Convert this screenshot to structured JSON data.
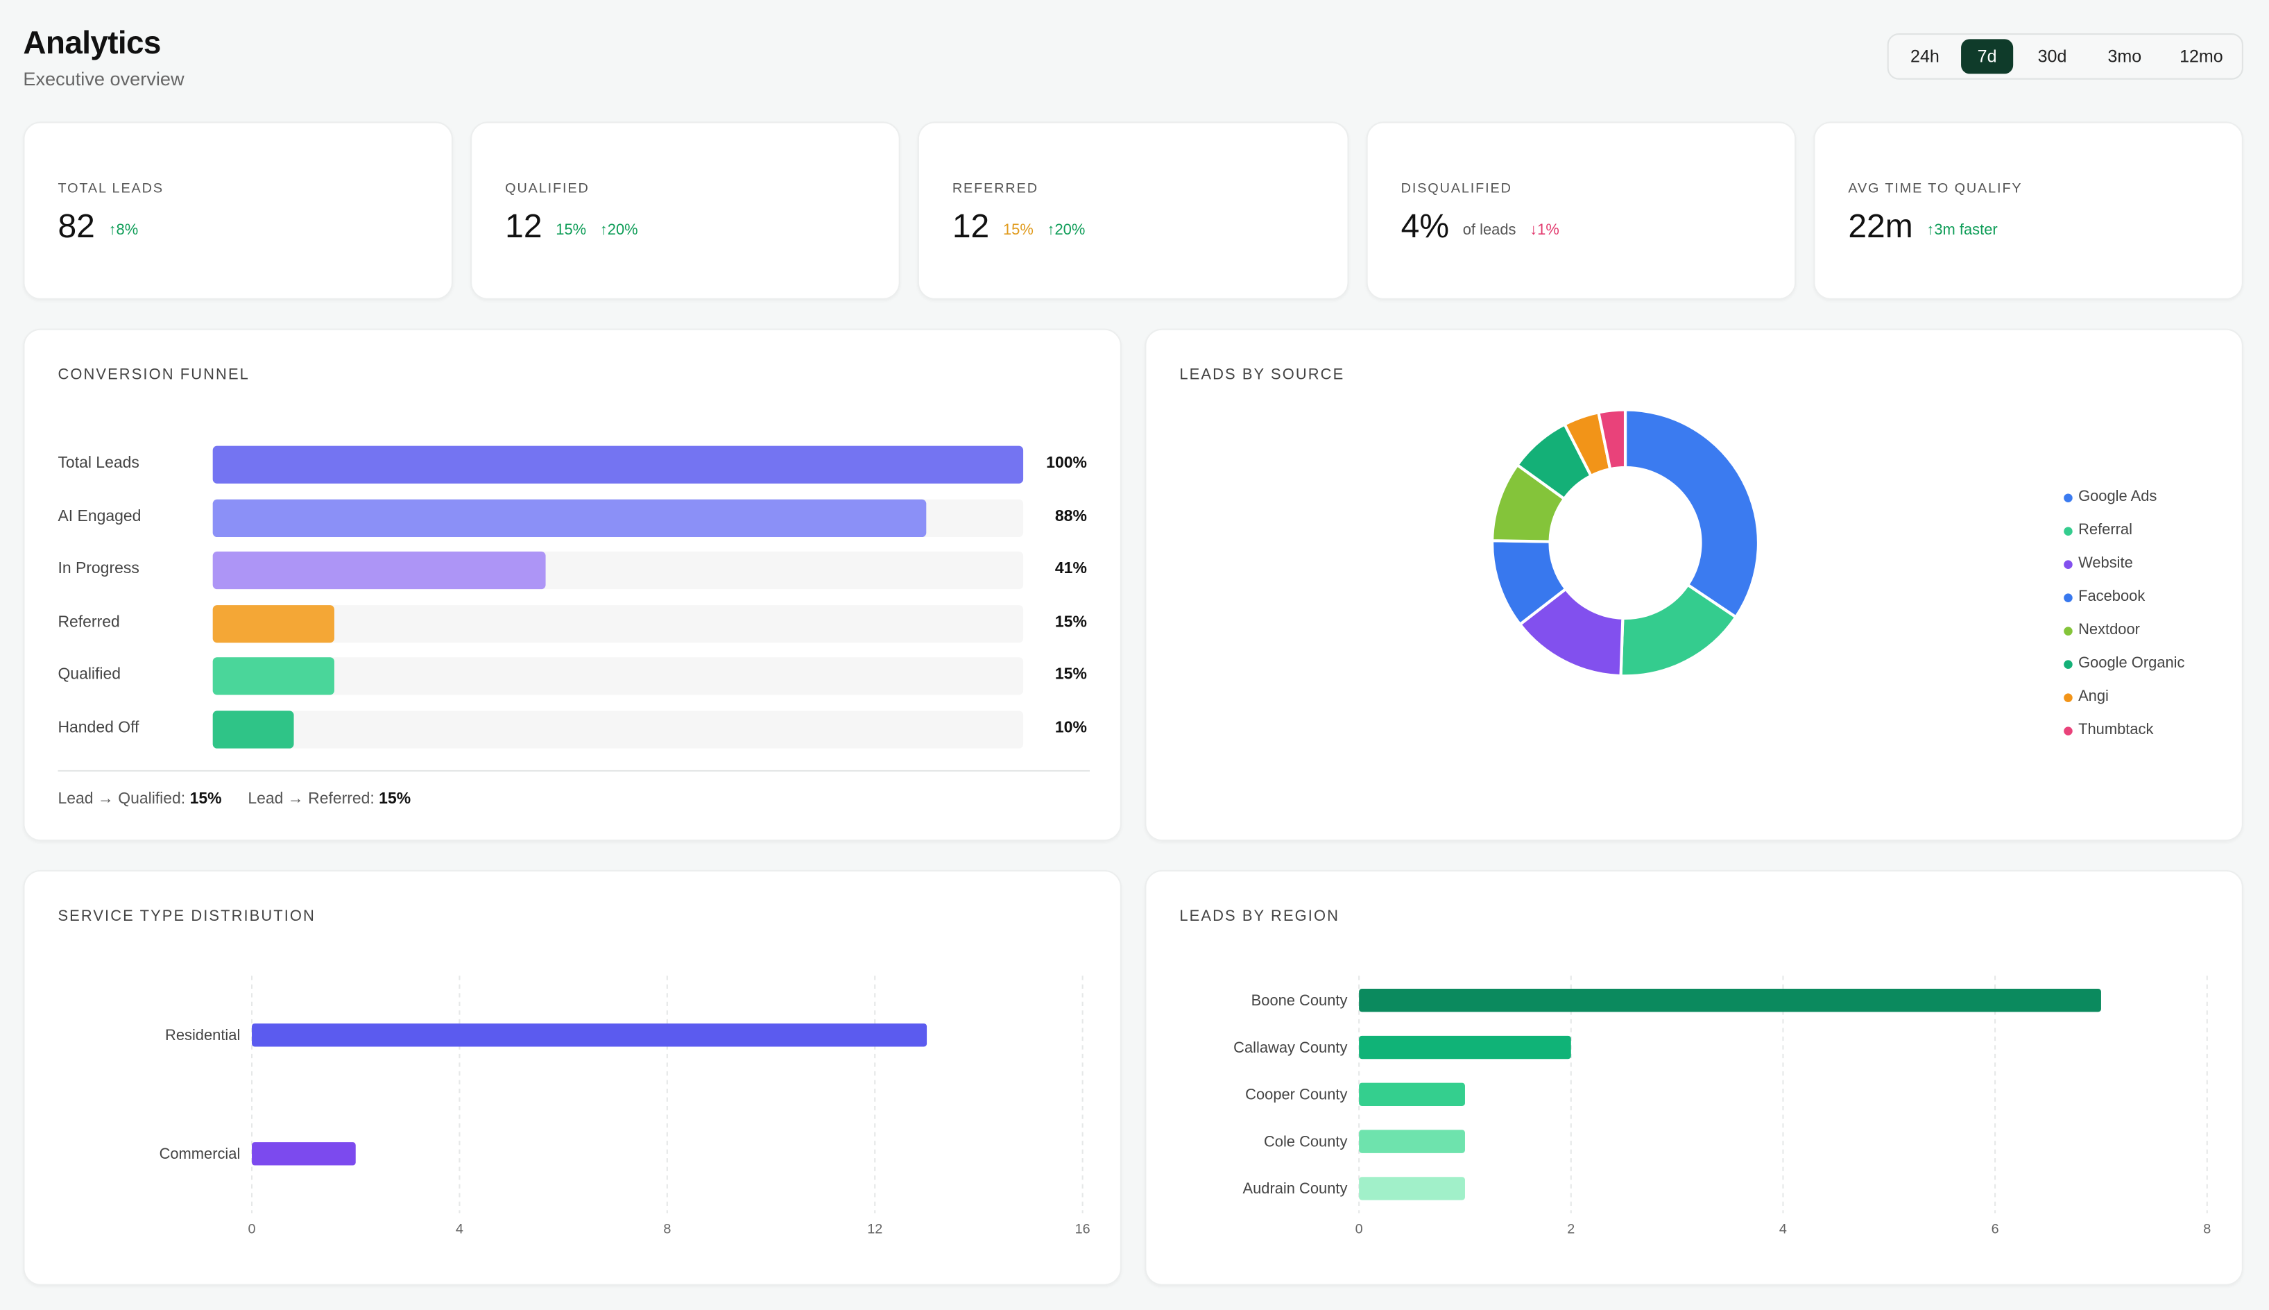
{
  "header": {
    "title": "Analytics",
    "subtitle": "Executive overview"
  },
  "range_selector": {
    "options": [
      "24h",
      "7d",
      "30d",
      "3mo",
      "12mo"
    ],
    "selected": "7d"
  },
  "kpis": [
    {
      "label": "TOTAL LEADS",
      "value": "82",
      "extra": [
        {
          "text": "↑8%",
          "tone": "green"
        }
      ]
    },
    {
      "label": "QUALIFIED",
      "value": "12",
      "extra": [
        {
          "text": "15%",
          "tone": "green"
        },
        {
          "text": "↑20%",
          "tone": "green"
        }
      ]
    },
    {
      "label": "REFERRED",
      "value": "12",
      "extra": [
        {
          "text": "15%",
          "tone": "orange"
        },
        {
          "text": "↑20%",
          "tone": "green"
        }
      ]
    },
    {
      "label": "DISQUALIFIED",
      "value": "4%",
      "extra": [
        {
          "text": "of leads",
          "tone": "muted"
        },
        {
          "text": "↓1%",
          "tone": "red"
        }
      ]
    },
    {
      "label": "AVG TIME TO QUALIFY",
      "value": "22m",
      "extra": [
        {
          "text": "↑3m faster",
          "tone": "green"
        }
      ]
    }
  ],
  "funnel": {
    "title": "CONVERSION FUNNEL",
    "stages": [
      {
        "label": "Total Leads",
        "percent": 100,
        "percent_text": "100%",
        "color": "#7474f2"
      },
      {
        "label": "AI Engaged",
        "percent": 88,
        "percent_text": "88%",
        "color": "#8b90f7"
      },
      {
        "label": "In Progress",
        "percent": 41,
        "percent_text": "41%",
        "color": "#ad95f6"
      },
      {
        "label": "Referred",
        "percent": 15,
        "percent_text": "15%",
        "color": "#f4a736"
      },
      {
        "label": "Qualified",
        "percent": 15,
        "percent_text": "15%",
        "color": "#4ad69a"
      },
      {
        "label": "Handed Off",
        "percent": 10,
        "percent_text": "10%",
        "color": "#2fc487"
      }
    ],
    "summary": [
      {
        "label": "Lead → Qualified:",
        "value": "15%"
      },
      {
        "label": "Lead → Referred:",
        "value": "15%"
      }
    ]
  },
  "charts": {
    "source": {
      "title": "LEADS BY SOURCE",
      "chart_data": {
        "type": "pie",
        "donut": true,
        "legend_position": "right",
        "slices": [
          {
            "name": "Google Ads",
            "value": 32,
            "color": "#3b7bf0"
          },
          {
            "name": "Referral",
            "value": 15,
            "color": "#34cc8e"
          },
          {
            "name": "Website",
            "value": 13,
            "color": "#8250ee"
          },
          {
            "name": "Facebook",
            "value": 10,
            "color": "#3878ee"
          },
          {
            "name": "Nextdoor",
            "value": 9,
            "color": "#84c43a"
          },
          {
            "name": "Google Organic",
            "value": 7,
            "color": "#14b077"
          },
          {
            "name": "Angi",
            "value": 4,
            "color": "#f29418"
          },
          {
            "name": "Thumbtack",
            "value": 3,
            "color": "#e9427a"
          }
        ]
      }
    },
    "service": {
      "title": "SERVICE TYPE DISTRIBUTION",
      "chart_data": {
        "type": "bar",
        "orientation": "horizontal",
        "categories": [
          "Residential",
          "Commercial"
        ],
        "values": [
          13,
          2
        ],
        "colors": [
          "#5b5bef",
          "#7c4aee"
        ],
        "xlim": [
          0,
          16
        ],
        "xticks": [
          0,
          4,
          8,
          12,
          16
        ],
        "grid": true
      }
    },
    "region": {
      "title": "LEADS BY REGION",
      "chart_data": {
        "type": "bar",
        "orientation": "horizontal",
        "categories": [
          "Boone County",
          "Callaway County",
          "Cooper County",
          "Cole County",
          "Audrain County"
        ],
        "values": [
          7,
          2,
          1,
          1,
          1
        ],
        "colors": [
          "#0b8a5e",
          "#10b377",
          "#34cf8e",
          "#6ee3ad",
          "#a1f0c9"
        ],
        "xlim": [
          0,
          8
        ],
        "xticks": [
          0,
          2,
          4,
          6,
          8
        ],
        "grid": true
      }
    }
  }
}
